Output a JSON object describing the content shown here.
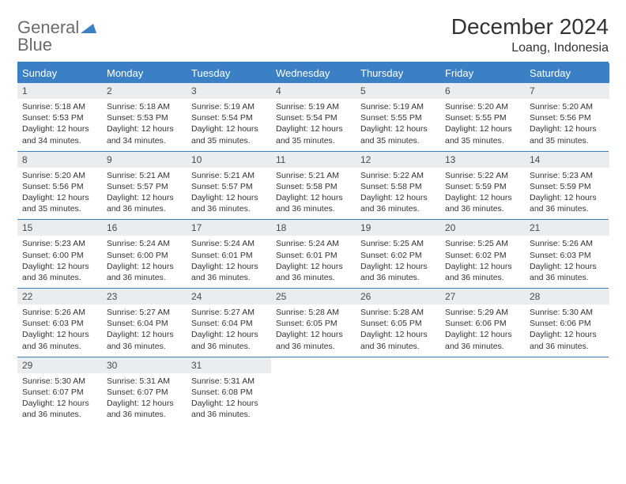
{
  "brand": {
    "general": "General",
    "blue": "Blue"
  },
  "title": "December 2024",
  "location": "Loang, Indonesia",
  "colors": {
    "accent": "#3b7fc4",
    "head_text": "#ffffff",
    "daynum_bg": "#e9edef",
    "body_text": "#333333",
    "logo_gray": "#6b6b6b"
  },
  "dayHeaders": [
    "Sunday",
    "Monday",
    "Tuesday",
    "Wednesday",
    "Thursday",
    "Friday",
    "Saturday"
  ],
  "weeks": [
    [
      {
        "n": "1",
        "sr": "5:18 AM",
        "ss": "5:53 PM",
        "dl": "12 hours and 34 minutes."
      },
      {
        "n": "2",
        "sr": "5:18 AM",
        "ss": "5:53 PM",
        "dl": "12 hours and 34 minutes."
      },
      {
        "n": "3",
        "sr": "5:19 AM",
        "ss": "5:54 PM",
        "dl": "12 hours and 35 minutes."
      },
      {
        "n": "4",
        "sr": "5:19 AM",
        "ss": "5:54 PM",
        "dl": "12 hours and 35 minutes."
      },
      {
        "n": "5",
        "sr": "5:19 AM",
        "ss": "5:55 PM",
        "dl": "12 hours and 35 minutes."
      },
      {
        "n": "6",
        "sr": "5:20 AM",
        "ss": "5:55 PM",
        "dl": "12 hours and 35 minutes."
      },
      {
        "n": "7",
        "sr": "5:20 AM",
        "ss": "5:56 PM",
        "dl": "12 hours and 35 minutes."
      }
    ],
    [
      {
        "n": "8",
        "sr": "5:20 AM",
        "ss": "5:56 PM",
        "dl": "12 hours and 35 minutes."
      },
      {
        "n": "9",
        "sr": "5:21 AM",
        "ss": "5:57 PM",
        "dl": "12 hours and 36 minutes."
      },
      {
        "n": "10",
        "sr": "5:21 AM",
        "ss": "5:57 PM",
        "dl": "12 hours and 36 minutes."
      },
      {
        "n": "11",
        "sr": "5:21 AM",
        "ss": "5:58 PM",
        "dl": "12 hours and 36 minutes."
      },
      {
        "n": "12",
        "sr": "5:22 AM",
        "ss": "5:58 PM",
        "dl": "12 hours and 36 minutes."
      },
      {
        "n": "13",
        "sr": "5:22 AM",
        "ss": "5:59 PM",
        "dl": "12 hours and 36 minutes."
      },
      {
        "n": "14",
        "sr": "5:23 AM",
        "ss": "5:59 PM",
        "dl": "12 hours and 36 minutes."
      }
    ],
    [
      {
        "n": "15",
        "sr": "5:23 AM",
        "ss": "6:00 PM",
        "dl": "12 hours and 36 minutes."
      },
      {
        "n": "16",
        "sr": "5:24 AM",
        "ss": "6:00 PM",
        "dl": "12 hours and 36 minutes."
      },
      {
        "n": "17",
        "sr": "5:24 AM",
        "ss": "6:01 PM",
        "dl": "12 hours and 36 minutes."
      },
      {
        "n": "18",
        "sr": "5:24 AM",
        "ss": "6:01 PM",
        "dl": "12 hours and 36 minutes."
      },
      {
        "n": "19",
        "sr": "5:25 AM",
        "ss": "6:02 PM",
        "dl": "12 hours and 36 minutes."
      },
      {
        "n": "20",
        "sr": "5:25 AM",
        "ss": "6:02 PM",
        "dl": "12 hours and 36 minutes."
      },
      {
        "n": "21",
        "sr": "5:26 AM",
        "ss": "6:03 PM",
        "dl": "12 hours and 36 minutes."
      }
    ],
    [
      {
        "n": "22",
        "sr": "5:26 AM",
        "ss": "6:03 PM",
        "dl": "12 hours and 36 minutes."
      },
      {
        "n": "23",
        "sr": "5:27 AM",
        "ss": "6:04 PM",
        "dl": "12 hours and 36 minutes."
      },
      {
        "n": "24",
        "sr": "5:27 AM",
        "ss": "6:04 PM",
        "dl": "12 hours and 36 minutes."
      },
      {
        "n": "25",
        "sr": "5:28 AM",
        "ss": "6:05 PM",
        "dl": "12 hours and 36 minutes."
      },
      {
        "n": "26",
        "sr": "5:28 AM",
        "ss": "6:05 PM",
        "dl": "12 hours and 36 minutes."
      },
      {
        "n": "27",
        "sr": "5:29 AM",
        "ss": "6:06 PM",
        "dl": "12 hours and 36 minutes."
      },
      {
        "n": "28",
        "sr": "5:30 AM",
        "ss": "6:06 PM",
        "dl": "12 hours and 36 minutes."
      }
    ],
    [
      {
        "n": "29",
        "sr": "5:30 AM",
        "ss": "6:07 PM",
        "dl": "12 hours and 36 minutes."
      },
      {
        "n": "30",
        "sr": "5:31 AM",
        "ss": "6:07 PM",
        "dl": "12 hours and 36 minutes."
      },
      {
        "n": "31",
        "sr": "5:31 AM",
        "ss": "6:08 PM",
        "dl": "12 hours and 36 minutes."
      },
      null,
      null,
      null,
      null
    ]
  ],
  "labels": {
    "sunrise": "Sunrise: ",
    "sunset": "Sunset: ",
    "daylight": "Daylight: "
  }
}
